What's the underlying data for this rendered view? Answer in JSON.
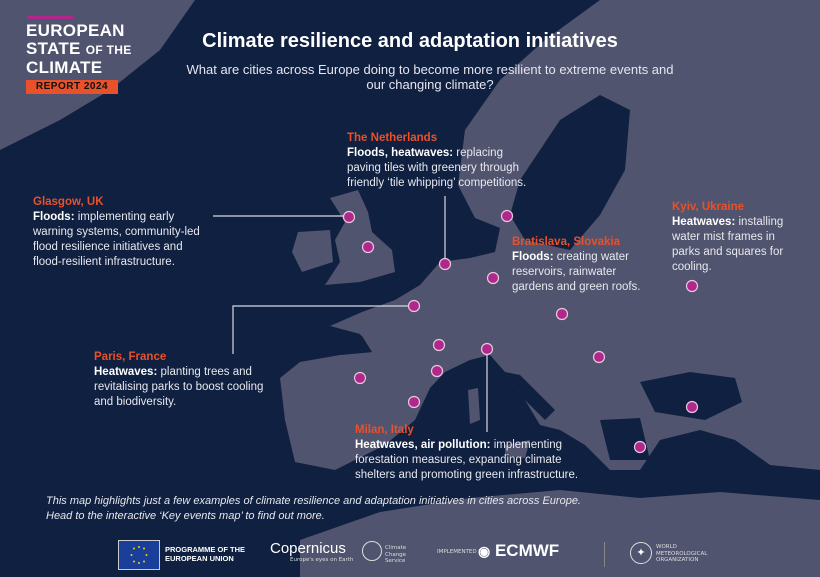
{
  "logo": {
    "line1": "EUROPEAN",
    "line2a": "STATE",
    "line2b": "OF THE",
    "line3": "CLIMATE",
    "report": "REPORT 2024"
  },
  "header": {
    "title": "Climate resilience and adaptation initiatives",
    "subtitle": "What are cities across Europe doing to become more resilient to extreme events and our changing climate?"
  },
  "colors": {
    "sea": "#0f2040",
    "land": "#50546e",
    "accent_orange": "#e8512a",
    "marker_magenta": "#b0288c"
  },
  "callouts": [
    {
      "city": "The Netherlands",
      "hazard": "Floods, heatwaves:",
      "text": "replacing paving tiles with greenery through friendly ‘tile whipping’ competitions."
    },
    {
      "city": "Glasgow, UK",
      "hazard": "Floods:",
      "text": "implementing early warning systems, community-led flood resilience initiatives and flood-resilient infrastructure."
    },
    {
      "city": "Bratislava, Slovakia",
      "hazard": "Floods:",
      "text": "creating water reservoirs, rainwater gardens and green roofs."
    },
    {
      "city": "Kyiv, Ukraine",
      "hazard": "Heatwaves:",
      "text": "installing water mist frames in parks and squares for cooling."
    },
    {
      "city": "Paris, France",
      "hazard": "Heatwaves:",
      "text": "planting trees and revitalising parks to boost cooling and biodiversity."
    },
    {
      "city": "Milan, Italy",
      "hazard": "Heatwaves, air pollution:",
      "text": "implementing forestation measures, expanding climate shelters and promoting green infrastructure."
    }
  ],
  "note": {
    "line1": "This map highlights just a few examples of climate resilience and adaptation initiatives in cities across Europe.",
    "line2": "Head to the interactive ‘Key events map’ to find out more."
  },
  "footer": {
    "eu": "PROGRAMME OF THE EUROPEAN UNION",
    "copernicus": "Copernicus",
    "copernicus_tag": "Europe's eyes on Earth",
    "c3s": "Climate Change Service",
    "implemented_by": "IMPLEMENTED BY",
    "ecmwf": "ECMWF",
    "wmo": "WORLD METEOROLOGICAL ORGANIZATION"
  }
}
